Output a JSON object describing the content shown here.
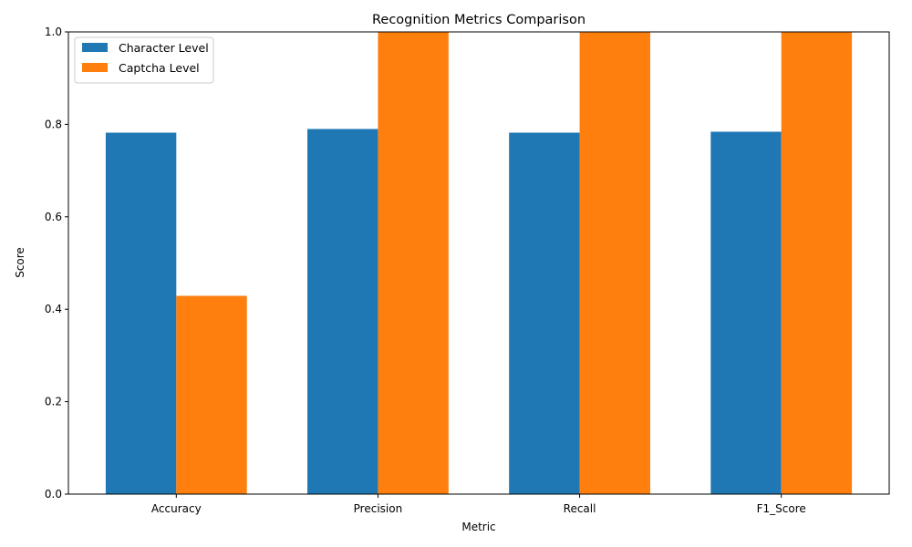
{
  "chart_data": {
    "type": "bar",
    "title": "Recognition Metrics Comparison",
    "xlabel": "Metric",
    "ylabel": "Score",
    "categories": [
      "Accuracy",
      "Precision",
      "Recall",
      "F1_Score"
    ],
    "series": [
      {
        "name": "Character Level",
        "color": "#1f77b4",
        "values": [
          0.782,
          0.79,
          0.782,
          0.784
        ]
      },
      {
        "name": "Captcha Level",
        "color": "#ff7f0e",
        "values": [
          0.429,
          1.0,
          1.0,
          1.0
        ]
      }
    ],
    "ylim": [
      0,
      1.0
    ],
    "yticks": [
      0.0,
      0.2,
      0.4,
      0.6,
      0.8,
      1.0
    ],
    "ytick_labels": [
      "0.0",
      "0.2",
      "0.4",
      "0.6",
      "0.8",
      "1.0"
    ],
    "grid": false,
    "legend_position": "top-left"
  }
}
